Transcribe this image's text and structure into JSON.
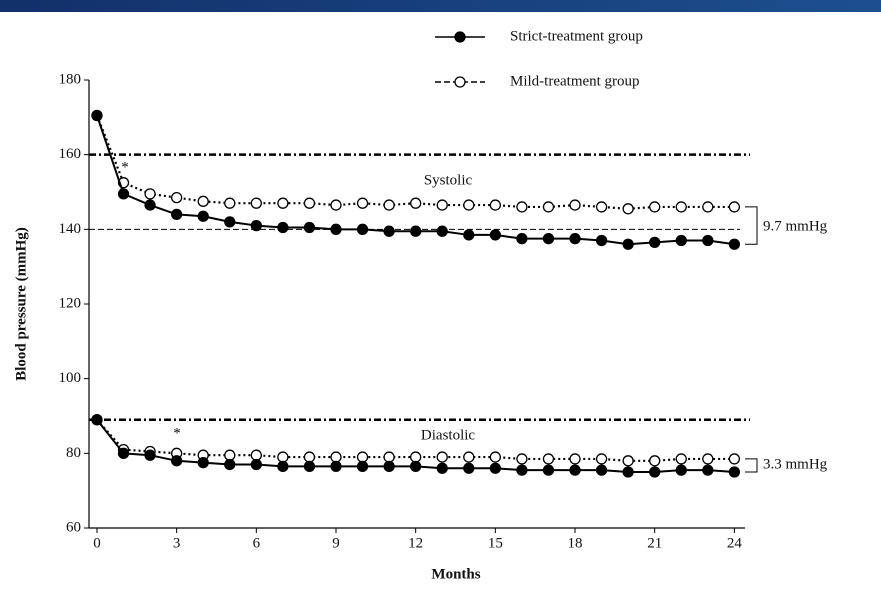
{
  "chart_data": {
    "type": "line",
    "x_label": "Months",
    "y_label": "Blood pressure (mmHg)",
    "x": [
      0,
      1,
      2,
      3,
      4,
      5,
      6,
      7,
      8,
      9,
      10,
      11,
      12,
      13,
      14,
      15,
      16,
      17,
      18,
      19,
      20,
      21,
      22,
      23,
      24
    ],
    "xlim": [
      -0.3,
      24.4
    ],
    "xticks": [
      0,
      3,
      6,
      9,
      12,
      15,
      18,
      21,
      24
    ],
    "ylim": [
      60,
      180
    ],
    "yticks": [
      60,
      80,
      100,
      120,
      140,
      160,
      180
    ],
    "reference_lines": [
      {
        "value": 160,
        "style": "bold"
      },
      {
        "value": 140,
        "style": "thin"
      },
      {
        "value": 89,
        "style": "bold"
      }
    ],
    "annotations": [
      "Systolic",
      "Diastolic",
      "*",
      "*",
      "9.7 mmHg",
      "3.3 mmHg"
    ],
    "series": [
      {
        "name": "Strict-treatment group",
        "color": "#000000",
        "marker": "filled",
        "line": "solid",
        "systolic": [
          170.5,
          149.5,
          146.5,
          144,
          143.5,
          142,
          141,
          140.5,
          140.5,
          140,
          140,
          139.5,
          139.5,
          139.5,
          138.5,
          138.5,
          137.5,
          137.5,
          137.5,
          137,
          136,
          136.5,
          137,
          137,
          136
        ],
        "diastolic": [
          89,
          80,
          79.5,
          78,
          77.5,
          77,
          77,
          76.5,
          76.5,
          76.5,
          76.5,
          76.5,
          76.5,
          76,
          76,
          76,
          75.5,
          75.5,
          75.5,
          75.5,
          75,
          75,
          75.5,
          75.5,
          75
        ]
      },
      {
        "name": "Mild-treatment group",
        "color": "#000000",
        "marker": "open",
        "line": "dotted",
        "systolic": [
          170.5,
          152.5,
          149.5,
          148.5,
          147.5,
          147,
          147,
          147,
          147,
          146.5,
          147,
          146.5,
          147,
          146.5,
          146.5,
          146.5,
          146,
          146,
          146.5,
          146,
          145.5,
          146,
          146,
          146,
          146
        ],
        "diastolic": [
          89,
          81,
          80.5,
          80,
          79.5,
          79.5,
          79.5,
          79,
          79,
          79,
          79,
          79,
          79,
          79,
          79,
          79,
          78.5,
          78.5,
          78.5,
          78.5,
          78,
          78,
          78.5,
          78.5,
          78.5
        ]
      }
    ]
  }
}
